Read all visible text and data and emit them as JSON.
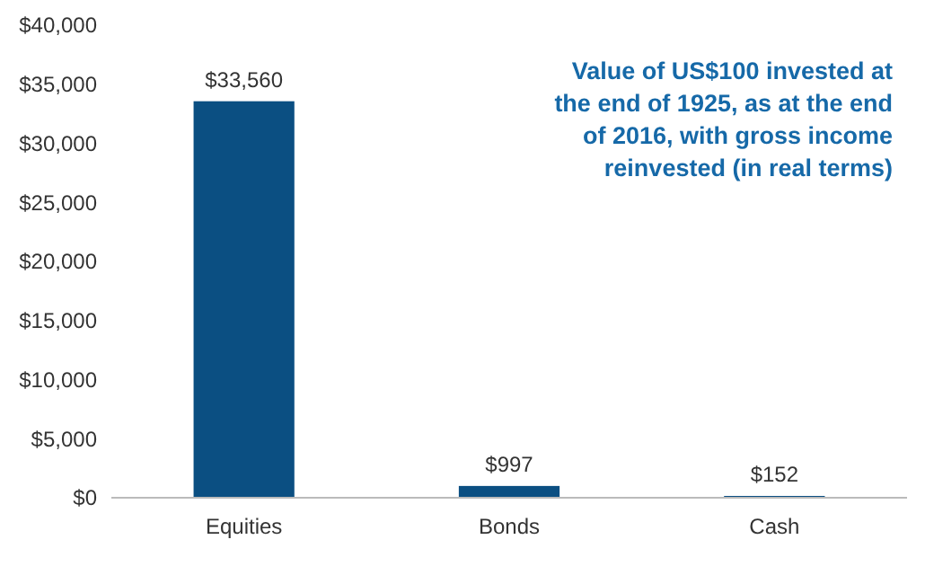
{
  "chart_data": {
    "type": "bar",
    "title": "Value of US$100 invested at the end of 1925, as at the end of 2016, with gross income reinvested (in real terms)",
    "categories": [
      "Equities",
      "Bonds",
      "Cash"
    ],
    "values": [
      33560,
      997,
      152
    ],
    "value_labels": [
      "$33,560",
      "$997",
      "$152"
    ],
    "color": "#0b4f82",
    "ylim": [
      0,
      40000
    ],
    "yticks": [
      {
        "value": 0,
        "label": "$0"
      },
      {
        "value": 5000,
        "label": "$5,000"
      },
      {
        "value": 10000,
        "label": "$10,000"
      },
      {
        "value": 15000,
        "label": "$15,000"
      },
      {
        "value": 20000,
        "label": "$20,000"
      },
      {
        "value": 25000,
        "label": "$25,000"
      },
      {
        "value": 30000,
        "label": "$30,000"
      },
      {
        "value": 35000,
        "label": "$35,000"
      },
      {
        "value": 40000,
        "label": "$40,000"
      }
    ],
    "grid": false
  }
}
